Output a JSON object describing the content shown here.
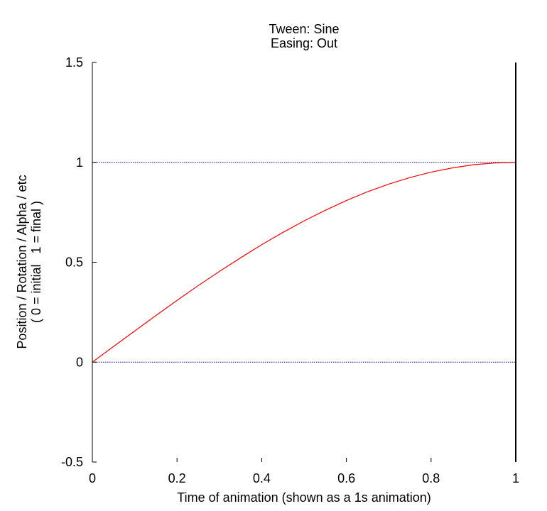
{
  "chart_data": {
    "type": "line",
    "title": "Tween: Sine",
    "subtitle": "Easing: Out",
    "xlabel": "Time of animation (shown as a 1s animation)",
    "ylabel": "Position / Rotation / Alpha / etc",
    "ylabel2": "( 0 = initial   1 = final )",
    "xlim": [
      0,
      1
    ],
    "ylim": [
      -0.5,
      1.5
    ],
    "x_ticks": [
      0,
      0.2,
      0.4,
      0.6,
      0.8,
      1
    ],
    "x_tick_labels": [
      "0",
      "0.2",
      "0.4",
      "0.6",
      "0.8",
      "1"
    ],
    "y_ticks": [
      -0.5,
      0,
      0.5,
      1,
      1.5
    ],
    "y_tick_labels": [
      "-0.5",
      "0",
      "0.5",
      "1",
      "1.5"
    ],
    "reference_lines": [
      0,
      1
    ],
    "reference_color": "#0000cc",
    "series": [
      {
        "color": "#ff0000",
        "x": [
          0,
          0.05,
          0.1,
          0.15,
          0.2,
          0.25,
          0.3,
          0.35,
          0.4,
          0.45,
          0.5,
          0.55,
          0.6,
          0.65,
          0.7,
          0.75,
          0.8,
          0.85,
          0.9,
          0.95,
          1
        ],
        "y": [
          0,
          0.078,
          0.156,
          0.233,
          0.309,
          0.383,
          0.454,
          0.522,
          0.588,
          0.649,
          0.707,
          0.76,
          0.809,
          0.853,
          0.891,
          0.924,
          0.951,
          0.972,
          0.988,
          0.997,
          1
        ]
      }
    ]
  }
}
